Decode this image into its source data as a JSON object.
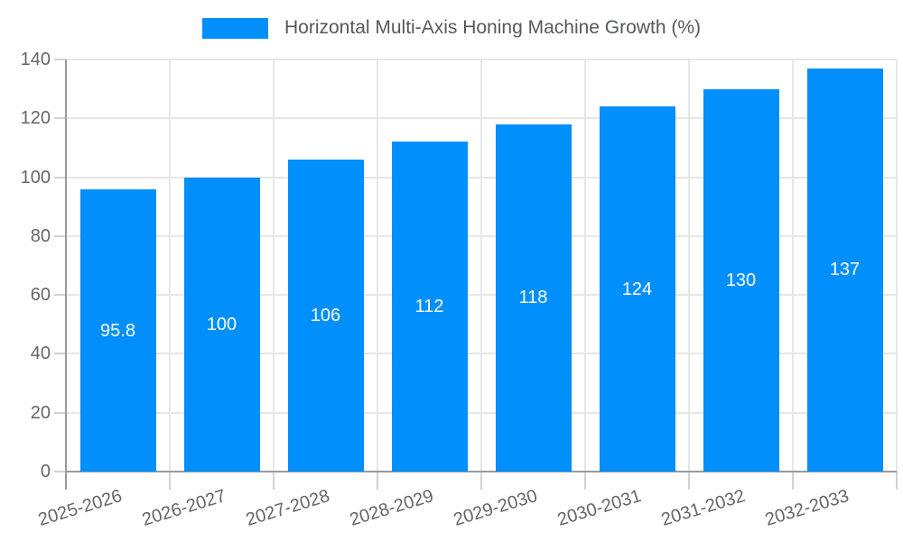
{
  "chart_data": {
    "type": "bar",
    "title": "Horizontal Multi-Axis Honing Machine Growth (%)",
    "xlabel": "",
    "ylabel": "",
    "categories": [
      "2025-2026",
      "2026-2027",
      "2027-2028",
      "2028-2029",
      "2029-2030",
      "2030-2031",
      "2031-2032",
      "2032-2033"
    ],
    "values": [
      95.8,
      100,
      106,
      112,
      118,
      124,
      130,
      137
    ],
    "value_labels": [
      "95.8",
      "100",
      "106",
      "112",
      "118",
      "124",
      "130",
      "137"
    ],
    "ylim": [
      0,
      140
    ],
    "yticks": [
      0,
      20,
      40,
      60,
      80,
      100,
      120,
      140
    ],
    "ytick_labels": [
      "0",
      "20",
      "40",
      "60",
      "80",
      "100",
      "120",
      "140"
    ],
    "grid": true,
    "legend_position": "top",
    "colors": {
      "bar": "#008FFB",
      "grid_line": "#e7e7e7",
      "axis_line": "#9a9a9a",
      "tick_mark": "#d2d2d2",
      "axis_text": "#666666",
      "title_text": "#56585c",
      "value_text": "#ffffff"
    }
  }
}
